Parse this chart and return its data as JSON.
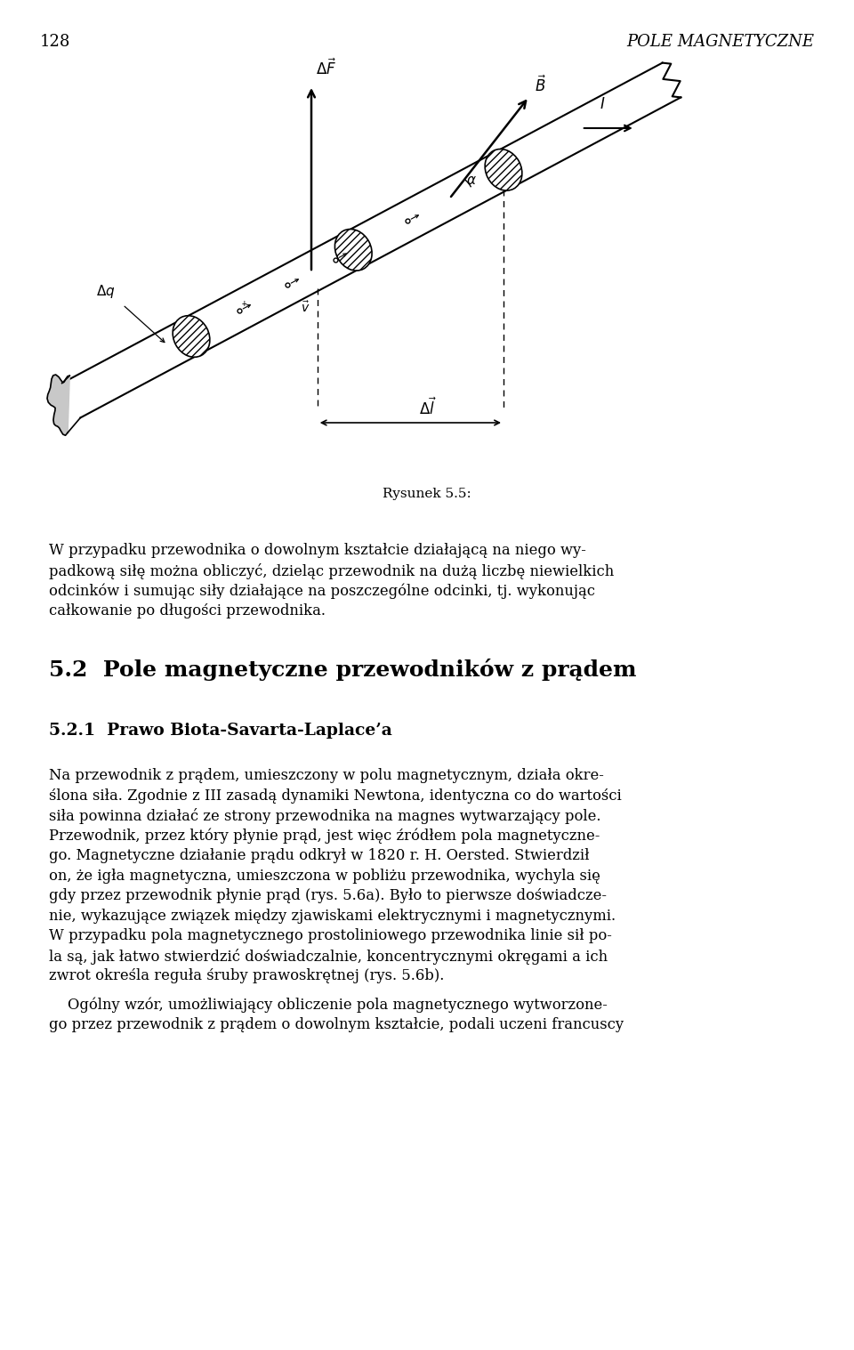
{
  "page_number": "128",
  "header_title": "POLE MAGNETYCZNE",
  "figure_caption": "Rysunek 5.5:",
  "section_title": "5.2  Pole magnetyczne przewodników z prądem",
  "subsection_title": "5.2.1  Prawo Biota-Savarta-Laplace’a",
  "para1_lines": [
    "W przypadku przewodnika o dowolnym kształcie działającą na niego wy-",
    "padkową siłę można obliczyć, dzieląc przewodnik na dużą liczbę niewielkich",
    "odcinków i sumując siły działające na poszczególne odcinki, tj. wykonując",
    "całkowanie po długości przewodnika."
  ],
  "para2_lines": [
    "Na przewodnik z prądem, umieszczony w polu magnetycznym, działa okre-",
    "ślona siła. Zgodnie z III zasadą dynamiki Newtona, identyczna co do wartości",
    "siła powinna działać ze strony przewodnika na magnes wytwarzający pole.",
    "Przewodnik, przez który płynie prąd, jest więc źródłem pola magnetyczne-",
    "go. Magnetyczne działanie prądu odkrył w 1820 r. H. Oersted. Stwierdził",
    "on, że igła magnetyczna, umieszczona w pobliżu przewodnika, wychyla się",
    "gdy przez przewodnik płynie prąd (rys. 5.6a). Było to pierwsze doświadcze-",
    "nie, wykazujące związek między zjawiskami elektrycznymi i magnetycznymi.",
    "W przypadku pola magnetycznego prostoliniowego przewodnika linie sił po-",
    "la są, jak łatwo stwierdzić doświadczalnie, koncentrycznymi okręgami a ich",
    "zwrot określa reguła śruby prawoskrętnej (rys. 5.6b)."
  ],
  "para3_lines": [
    "    Ogólny wzór, umożliwiający obliczenie pola magnetycznego wytworzone-",
    "go przez przewodnik z prądem o dowolnym kształcie, podali uczeni francuscy"
  ],
  "bg_color": "#ffffff",
  "text_color": "#000000"
}
